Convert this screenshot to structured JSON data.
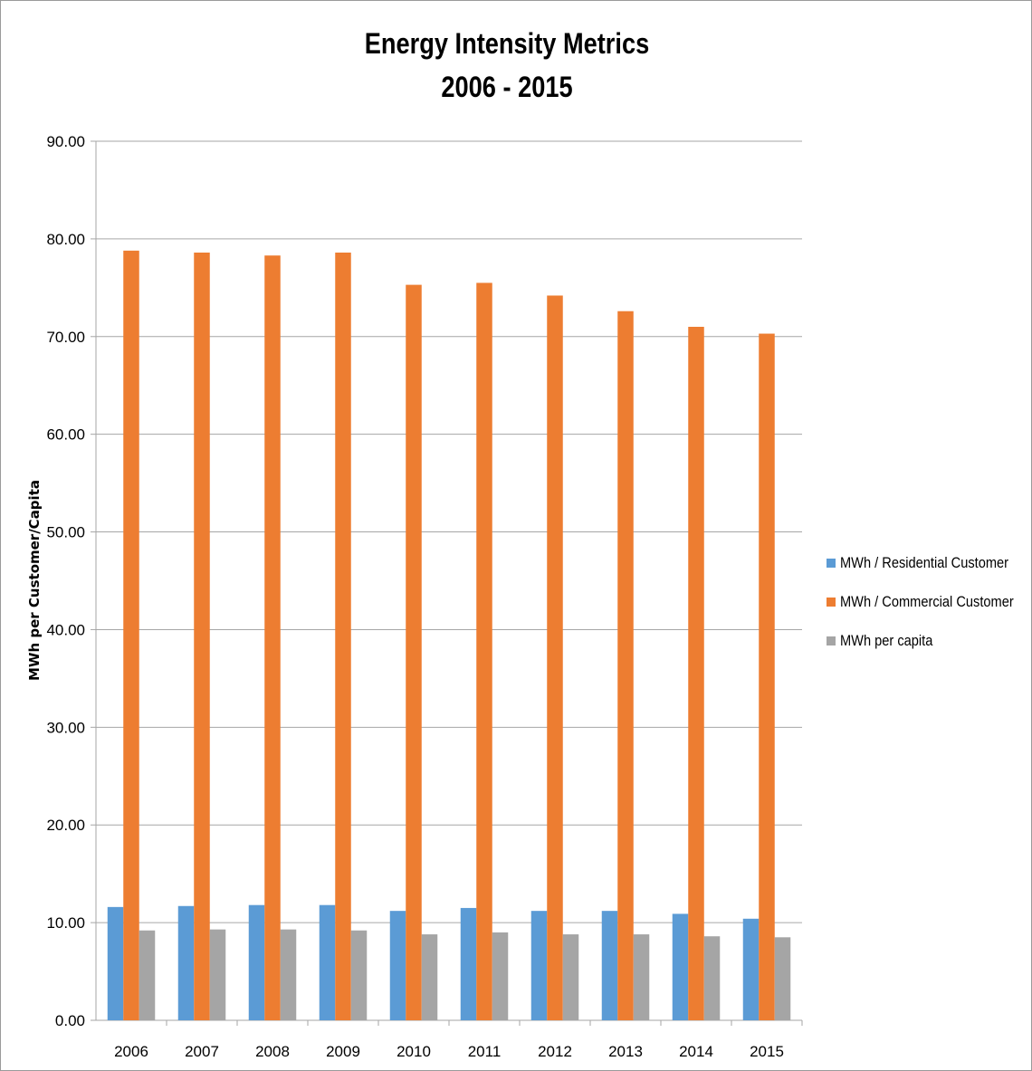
{
  "chart_data": {
    "type": "bar",
    "title_line1": "Energy Intensity Metrics",
    "title_line2": "2006 - 2015",
    "xlabel": "",
    "ylabel": "MWh per Customer/Capita",
    "ylim": [
      0,
      90
    ],
    "ytick_step": 10,
    "ytick_labels": [
      "0.00",
      "10.00",
      "20.00",
      "30.00",
      "40.00",
      "50.00",
      "60.00",
      "70.00",
      "80.00",
      "90.00"
    ],
    "grid": true,
    "legend_position": "right",
    "categories": [
      "2006",
      "2007",
      "2008",
      "2009",
      "2010",
      "2011",
      "2012",
      "2013",
      "2014",
      "2015"
    ],
    "series": [
      {
        "name": "MWh / Residential Customer",
        "color": "#5b9bd5",
        "values": [
          11.6,
          11.7,
          11.8,
          11.8,
          11.2,
          11.5,
          11.2,
          11.2,
          10.9,
          10.4
        ]
      },
      {
        "name": "MWh / Commercial Customer",
        "color": "#ed7d31",
        "values": [
          78.8,
          78.6,
          78.3,
          78.6,
          75.3,
          75.5,
          74.2,
          72.6,
          71.0,
          70.3
        ]
      },
      {
        "name": "MWh per capita",
        "color": "#a5a5a5",
        "values": [
          9.2,
          9.3,
          9.3,
          9.2,
          8.8,
          9.0,
          8.8,
          8.8,
          8.6,
          8.5
        ]
      }
    ]
  }
}
